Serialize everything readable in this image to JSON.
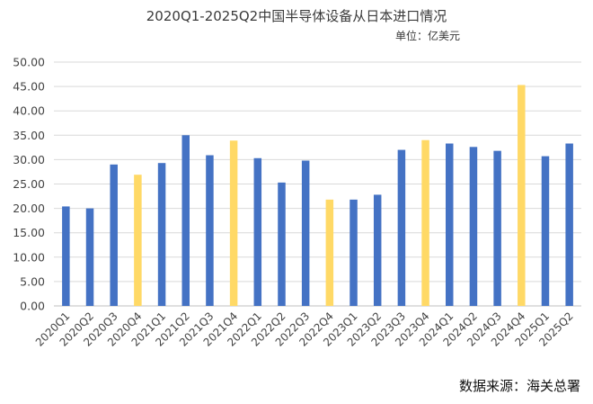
{
  "chart_data": {
    "type": "bar",
    "title": "2020Q1-2025Q2中国半导体设备从日本进口情况",
    "unit": "单位：亿美元",
    "source": "数据来源：海关总署",
    "categories": [
      "2020Q1",
      "2020Q2",
      "2020Q3",
      "2020Q4",
      "2021Q1",
      "2021Q2",
      "2021Q3",
      "2021Q4",
      "2022Q1",
      "2022Q2",
      "2022Q3",
      "2022Q4",
      "2023Q1",
      "2023Q2",
      "2023Q3",
      "2023Q4",
      "2024Q1",
      "2024Q2",
      "2024Q3",
      "2024Q4",
      "2025Q1",
      "2025Q2"
    ],
    "values": [
      20.4,
      20.0,
      29.0,
      26.9,
      29.3,
      35.0,
      30.9,
      33.9,
      30.3,
      25.3,
      29.8,
      21.8,
      21.8,
      22.8,
      32.0,
      34.0,
      33.3,
      32.6,
      31.8,
      45.3,
      30.7,
      33.3
    ],
    "highlight": [
      false,
      false,
      false,
      true,
      false,
      false,
      false,
      true,
      false,
      false,
      false,
      true,
      false,
      false,
      false,
      true,
      false,
      false,
      false,
      true,
      false,
      false
    ],
    "ylim": [
      0,
      50
    ],
    "yticks": [
      "0.00",
      "5.00",
      "10.00",
      "15.00",
      "20.00",
      "25.00",
      "30.00",
      "35.00",
      "40.00",
      "45.00",
      "50.00"
    ],
    "grid": true,
    "legend": "none",
    "colors": {
      "bar": "#4472c4",
      "highlight": "#ffd966",
      "grid": "#d9d9d9",
      "axis": "#bfbfbf"
    }
  }
}
